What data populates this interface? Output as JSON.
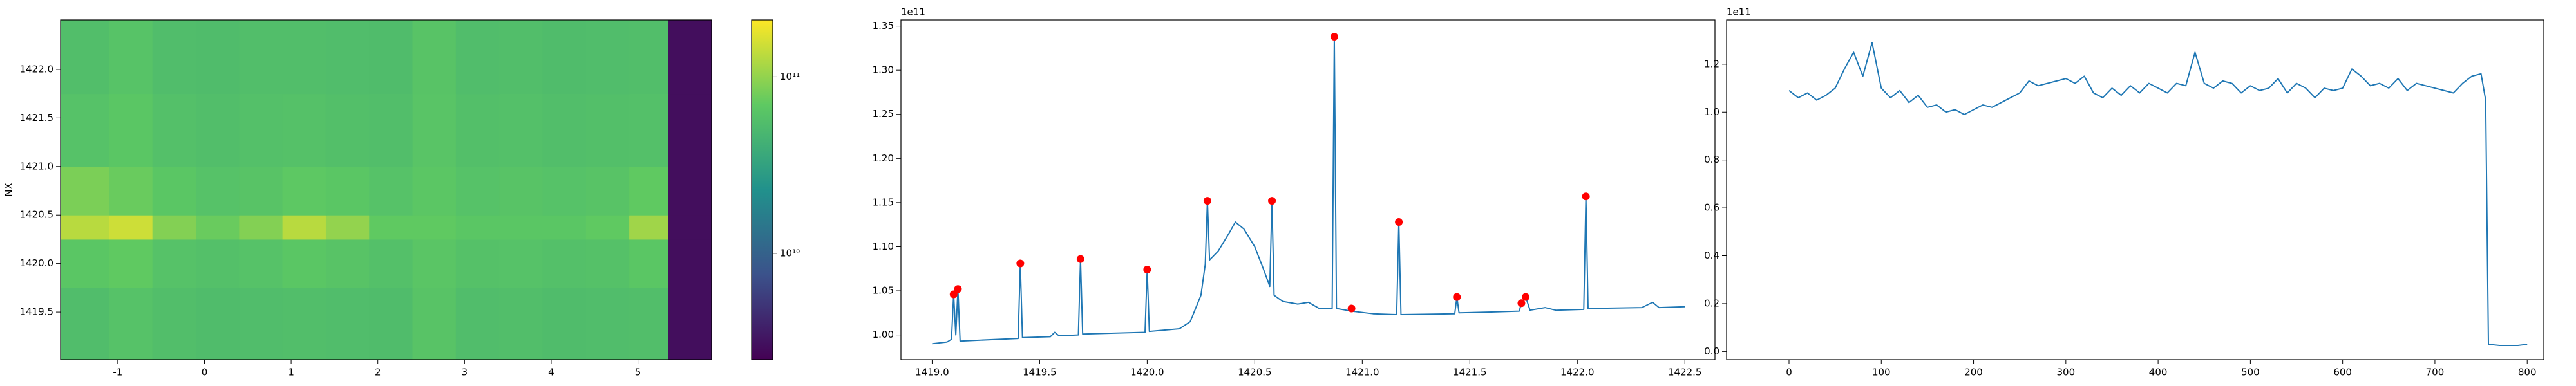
{
  "chart_data": [
    {
      "type": "heatmap",
      "ylabel": "NX",
      "xlim": [
        -1.66,
        5.85
      ],
      "ylim": [
        1419.01,
        1422.51
      ],
      "xticks": [
        -1,
        0,
        1,
        2,
        3,
        4,
        5
      ],
      "yticks": [
        1419.5,
        {
          "value": 1420.0,
          "label": "1420.0"
        },
        1420.5,
        {
          "value": 1421.0,
          "label": "1421.0"
        },
        1421.5,
        {
          "value": 1422.0,
          "label": "1422.0"
        }
      ],
      "x_edges": [
        -1.66,
        -1.1,
        -0.6,
        -0.1,
        0.4,
        0.9,
        1.4,
        1.9,
        2.4,
        2.9,
        3.4,
        3.9,
        4.4,
        4.9,
        5.35,
        5.85
      ],
      "y_edges": [
        1419.01,
        1419.75,
        1420.25,
        1420.5,
        1421.0,
        1421.75,
        1422.51
      ],
      "z": [
        [
          55000000000.0,
          60000000000.0,
          56000000000.0,
          54000000000.0,
          55000000000.0,
          56000000000.0,
          55000000000.0,
          54000000000.0,
          62000000000.0,
          55000000000.0,
          56000000000.0,
          54000000000.0,
          55000000000.0,
          56000000000.0,
          3000000000.0
        ],
        [
          65000000000.0,
          70000000000.0,
          60000000000.0,
          58000000000.0,
          60000000000.0,
          65000000000.0,
          62000000000.0,
          58000000000.0,
          64000000000.0,
          59000000000.0,
          60000000000.0,
          58000000000.0,
          59000000000.0,
          65000000000.0,
          3000000000.0
        ],
        [
          130000000000.0,
          150000000000.0,
          90000000000.0,
          75000000000.0,
          90000000000.0,
          130000000000.0,
          100000000000.0,
          70000000000.0,
          70000000000.0,
          65000000000.0,
          65000000000.0,
          65000000000.0,
          70000000000.0,
          110000000000.0,
          3000000000.0
        ],
        [
          85000000000.0,
          75000000000.0,
          65000000000.0,
          60000000000.0,
          62000000000.0,
          68000000000.0,
          65000000000.0,
          60000000000.0,
          66000000000.0,
          60000000000.0,
          62000000000.0,
          60000000000.0,
          62000000000.0,
          70000000000.0,
          3000000000.0
        ],
        [
          60000000000.0,
          65000000000.0,
          58000000000.0,
          56000000000.0,
          58000000000.0,
          59000000000.0,
          57000000000.0,
          56000000000.0,
          63000000000.0,
          57000000000.0,
          58000000000.0,
          56000000000.0,
          57000000000.0,
          58000000000.0,
          3000000000.0
        ],
        [
          56000000000.0,
          61000000000.0,
          55000000000.0,
          54000000000.0,
          56000000000.0,
          56000000000.0,
          55000000000.0,
          54000000000.0,
          62000000000.0,
          55000000000.0,
          56000000000.0,
          54000000000.0,
          55000000000.0,
          56000000000.0,
          3000000000.0
        ]
      ],
      "colormap": "viridis",
      "cscale": "log",
      "clim": [
        2500000000.0,
        210000000000.0
      ],
      "cticks": [
        {
          "value": 10000000000.0,
          "label": "10¹⁰"
        },
        {
          "value": 100000000000.0,
          "label": "10¹¹"
        }
      ]
    },
    {
      "type": "line",
      "y_offset_label": "1e11",
      "xlim": [
        1418.855,
        1422.64
      ],
      "ylim": [
        0.972,
        1.357
      ],
      "xticks": [
        {
          "value": 1419.0,
          "label": "1419.0"
        },
        1419.5,
        {
          "value": 1420.0,
          "label": "1420.0"
        },
        1420.5,
        {
          "value": 1421.0,
          "label": "1421.0"
        },
        1421.5,
        {
          "value": 1422.0,
          "label": "1422.0"
        },
        1422.5
      ],
      "yticks": [
        {
          "value": 1.0,
          "label": "1.00"
        },
        1.05,
        {
          "value": 1.1,
          "label": "1.10"
        },
        1.15,
        {
          "value": 1.2,
          "label": "1.20"
        },
        1.25,
        {
          "value": 1.3,
          "label": "1.30"
        },
        1.35
      ],
      "x": [
        1419.0,
        1419.07,
        1419.09,
        1419.1,
        1419.11,
        1419.12,
        1419.13,
        1419.4,
        1419.41,
        1419.42,
        1419.55,
        1419.57,
        1419.59,
        1419.68,
        1419.69,
        1419.7,
        1419.99,
        1420.0,
        1420.01,
        1420.15,
        1420.2,
        1420.25,
        1420.27,
        1420.28,
        1420.29,
        1420.33,
        1420.38,
        1420.41,
        1420.45,
        1420.5,
        1420.54,
        1420.57,
        1420.58,
        1420.59,
        1420.63,
        1420.7,
        1420.75,
        1420.8,
        1420.86,
        1420.87,
        1420.88,
        1420.95,
        1421.05,
        1421.16,
        1421.17,
        1421.18,
        1421.43,
        1421.44,
        1421.45,
        1421.6,
        1421.73,
        1421.74,
        1421.76,
        1421.78,
        1421.85,
        1421.9,
        1422.03,
        1422.04,
        1422.05,
        1422.3,
        1422.35,
        1422.38,
        1422.5
      ],
      "series": [
        {
          "color": "#1f77b4",
          "values": [
            0.99,
            0.992,
            0.995,
            1.046,
            1.0,
            1.052,
            0.993,
            0.996,
            1.081,
            0.997,
            0.998,
            1.003,
            0.999,
            1.0,
            1.086,
            1.001,
            1.003,
            1.074,
            1.004,
            1.007,
            1.015,
            1.045,
            1.08,
            1.152,
            1.085,
            1.095,
            1.115,
            1.128,
            1.12,
            1.1,
            1.075,
            1.055,
            1.152,
            1.045,
            1.038,
            1.035,
            1.037,
            1.03,
            1.03,
            1.338,
            1.03,
            1.027,
            1.024,
            1.023,
            1.128,
            1.023,
            1.024,
            1.043,
            1.025,
            1.026,
            1.027,
            1.036,
            1.043,
            1.028,
            1.031,
            1.028,
            1.029,
            1.157,
            1.03,
            1.031,
            1.037,
            1.031,
            1.032
          ]
        }
      ],
      "peaks": {
        "color": "#ff0000",
        "x": [
          1419.1,
          1419.12,
          1419.41,
          1419.69,
          1420.0,
          1420.28,
          1420.58,
          1420.87,
          1420.95,
          1421.17,
          1421.44,
          1421.74,
          1421.76,
          1422.04
        ],
        "values": [
          1.046,
          1.052,
          1.081,
          1.086,
          1.074,
          1.152,
          1.152,
          1.338,
          1.03,
          1.128,
          1.043,
          1.036,
          1.043,
          1.157
        ]
      }
    },
    {
      "type": "line",
      "y_offset_label": "1e11",
      "xlim": [
        -67.7,
        818
      ],
      "ylim": [
        -0.034,
        1.385
      ],
      "xticks": [
        0,
        100,
        200,
        300,
        400,
        500,
        600,
        700,
        800
      ],
      "yticks": [
        {
          "value": 0.0,
          "label": "0.0"
        },
        0.2,
        0.4,
        0.6,
        0.8,
        {
          "value": 1.0,
          "label": "1.0"
        },
        1.2
      ],
      "x": [
        0,
        10,
        20,
        30,
        40,
        50,
        60,
        70,
        80,
        90,
        100,
        110,
        120,
        130,
        140,
        150,
        160,
        170,
        180,
        190,
        200,
        210,
        220,
        230,
        240,
        250,
        260,
        270,
        280,
        290,
        300,
        310,
        320,
        330,
        340,
        350,
        360,
        370,
        380,
        390,
        400,
        410,
        420,
        430,
        440,
        450,
        460,
        470,
        480,
        490,
        500,
        510,
        520,
        530,
        540,
        550,
        560,
        570,
        580,
        590,
        600,
        610,
        620,
        630,
        640,
        650,
        660,
        670,
        680,
        690,
        700,
        710,
        720,
        730,
        740,
        750,
        755,
        758,
        770,
        780,
        790,
        800
      ],
      "series": [
        {
          "color": "#1f77b4",
          "values": [
            1.09,
            1.06,
            1.08,
            1.05,
            1.07,
            1.1,
            1.18,
            1.25,
            1.15,
            1.29,
            1.1,
            1.06,
            1.09,
            1.04,
            1.07,
            1.02,
            1.03,
            1.0,
            1.01,
            0.99,
            1.01,
            1.03,
            1.02,
            1.04,
            1.06,
            1.08,
            1.13,
            1.11,
            1.12,
            1.13,
            1.14,
            1.12,
            1.15,
            1.08,
            1.06,
            1.1,
            1.07,
            1.11,
            1.08,
            1.12,
            1.1,
            1.08,
            1.12,
            1.11,
            1.25,
            1.12,
            1.1,
            1.13,
            1.12,
            1.08,
            1.11,
            1.09,
            1.1,
            1.14,
            1.08,
            1.12,
            1.1,
            1.06,
            1.1,
            1.09,
            1.1,
            1.18,
            1.15,
            1.11,
            1.12,
            1.1,
            1.14,
            1.09,
            1.12,
            1.11,
            1.1,
            1.09,
            1.08,
            1.12,
            1.15,
            1.16,
            1.05,
            0.03,
            0.025,
            0.025,
            0.025,
            0.03
          ]
        }
      ]
    }
  ]
}
